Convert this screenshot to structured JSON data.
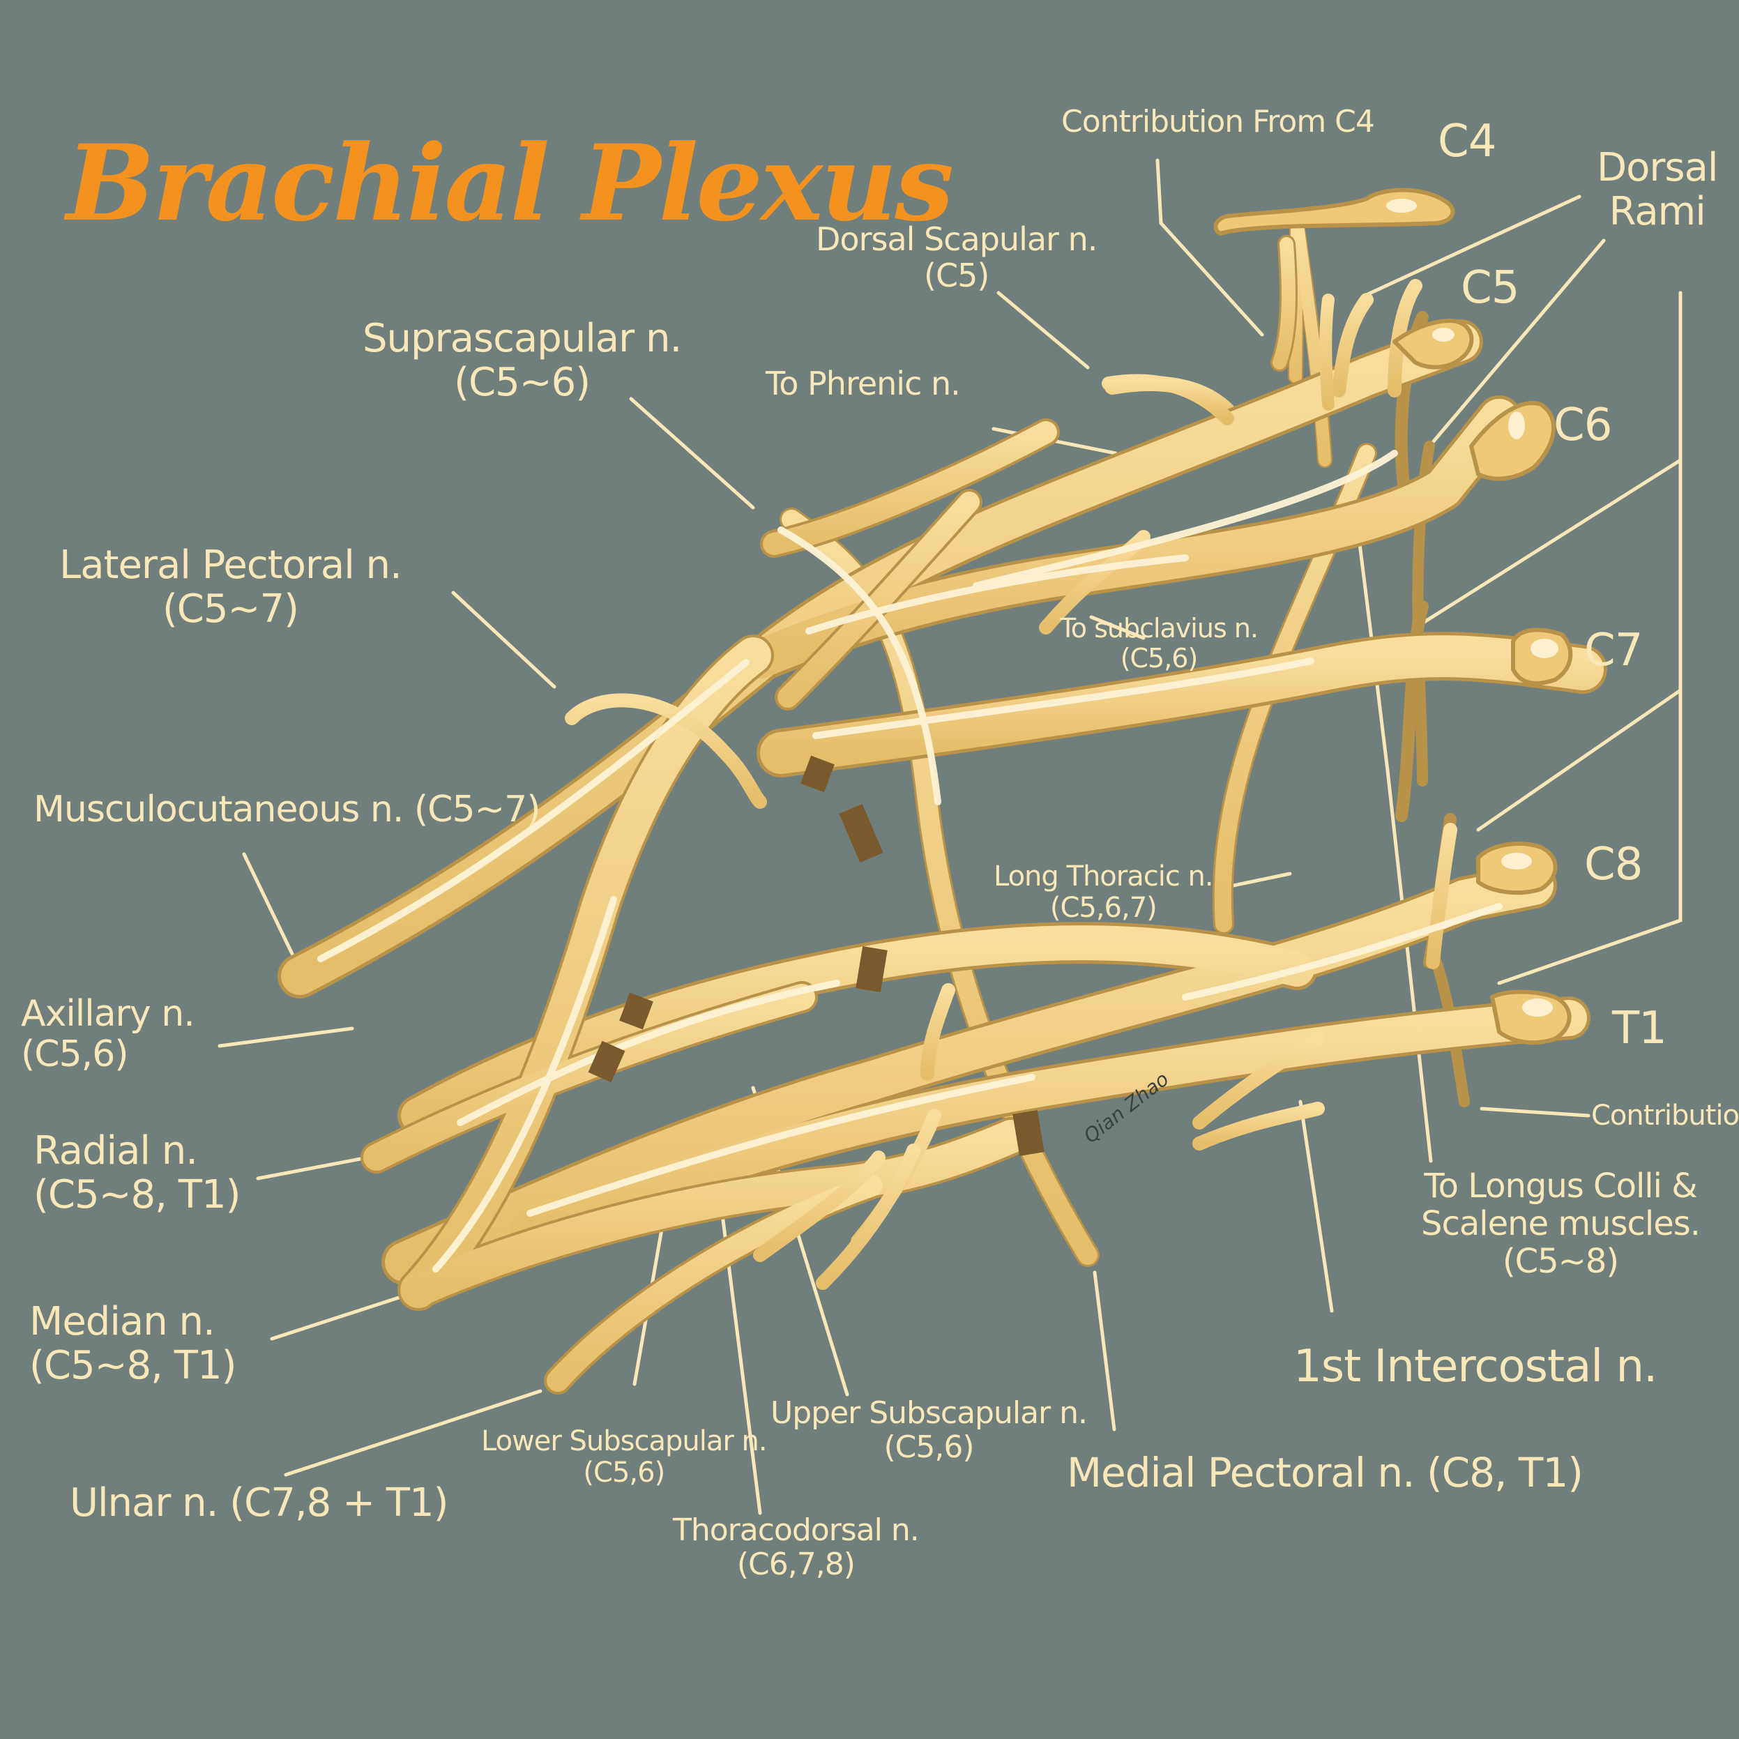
{
  "title": "Brachial Plexus",
  "signature": "Qian Zhao",
  "colors": {
    "background": "#717f7c",
    "title": "#f3921f",
    "label": "#f8e7b8",
    "nerve": "#efc978",
    "nerve_highlight": "#fdf3d6",
    "nerve_shadow": "#b89249",
    "band": "#7a5a2c"
  },
  "roots": {
    "c4": "C4",
    "c5": "C5",
    "c6": "C6",
    "c7": "C7",
    "c8": "C8",
    "t1": "T1"
  },
  "labels": {
    "contribution_c4": "Contribution From C4",
    "dorsal_rami": "Dorsal\nRami",
    "dorsal_scapular": "Dorsal Scapular n.\n(C5)",
    "suprascapular": "Suprascapular n.\n(C5~6)",
    "to_phrenic": "To Phrenic n.",
    "lateral_pectoral": "Lateral Pectoral n.\n(C5~7)",
    "to_subclavius": "To subclavius n.\n(C5,6)",
    "musculocutaneous": "Musculocutaneous n. (C5~7)",
    "long_thoracic": "Long Thoracic n.\n(C5,6,7)",
    "axillary": "Axillary n.\n(C5,6)",
    "radial": "Radial n.\n(C5~8, T1)",
    "median": "Median n.\n(C5~8, T1)",
    "ulnar": "Ulnar n. (C7,8 + T1)",
    "lower_subscapular": "Lower Subscapular n.\n(C5,6)",
    "thoracodorsal": "Thoracodorsal n.\n(C6,7,8)",
    "upper_subscapular": "Upper Subscapular n.\n(C5,6)",
    "medial_pectoral": "Medial Pectoral n. (C8, T1)",
    "first_intercostal": "1st Intercostal n.",
    "to_longus_colli": "To Longus Colli &\nScalene muscles.\n(C5~8)",
    "contribution_t2": "Contribution Fr"
  }
}
